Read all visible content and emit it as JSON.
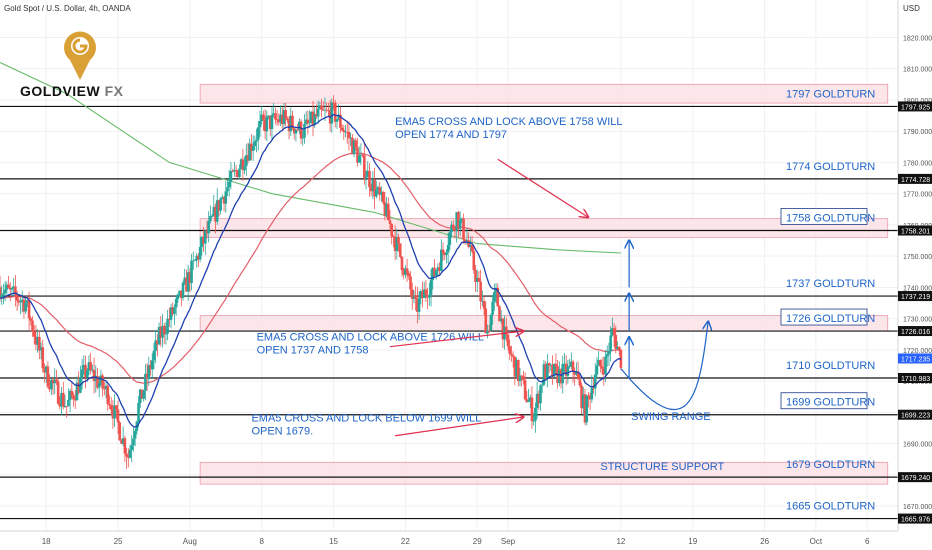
{
  "header": {
    "symbol_title": "Gold Spot / U.S. Dollar, 4h, OANDA",
    "currency": "USD"
  },
  "logo": {
    "brand": "GOLDVIEW",
    "suffix": "FX",
    "icon": "gold-g-pin-icon"
  },
  "colors": {
    "up_candle": "#26a69a",
    "down_candle": "#ef5350",
    "ema_fast": "#1e40af",
    "ema_slow": "#e35d6a",
    "ema_long": "#66bb6a",
    "annotation_blue": "#1e64c8",
    "annotation_red": "#e03050",
    "zone_fill": "#fde2e6",
    "zone_border": "#e88a9a"
  },
  "chart_data": {
    "type": "candlestick",
    "title": "Gold Spot / U.S. Dollar, 4h, OANDA",
    "ylim": [
      1662,
      1832
    ],
    "y_ticks": [
      1670,
      1680,
      1690,
      1700,
      1710,
      1720,
      1730,
      1740,
      1750,
      1760,
      1770,
      1780,
      1790,
      1800,
      1810,
      1820
    ],
    "x_ticks": [
      {
        "label": "18",
        "day": 18
      },
      {
        "label": "25",
        "day": 25
      },
      {
        "label": "Aug",
        "day": 32
      },
      {
        "label": "8",
        "day": 39
      },
      {
        "label": "15",
        "day": 46
      },
      {
        "label": "22",
        "day": 53
      },
      {
        "label": "29",
        "day": 60
      },
      {
        "label": "Sep",
        "day": 63
      },
      {
        "label": "12",
        "day": 74
      },
      {
        "label": "19",
        "day": 81
      },
      {
        "label": "26",
        "day": 88
      },
      {
        "label": "Oct",
        "day": 93
      },
      {
        "label": "6",
        "day": 98
      }
    ],
    "x_range_days": [
      13.5,
      101
    ],
    "price_path": [
      [
        13.5,
        1740
      ],
      [
        16,
        1735
      ],
      [
        18,
        1712
      ],
      [
        20,
        1702
      ],
      [
        22,
        1714
      ],
      [
        24,
        1706
      ],
      [
        26,
        1686
      ],
      [
        27,
        1702
      ],
      [
        29,
        1724
      ],
      [
        31,
        1736
      ],
      [
        33,
        1752
      ],
      [
        35,
        1768
      ],
      [
        37,
        1780
      ],
      [
        39,
        1792
      ],
      [
        41,
        1794
      ],
      [
        43,
        1790
      ],
      [
        44.5,
        1795
      ],
      [
        46,
        1796
      ],
      [
        47.5,
        1788
      ],
      [
        49,
        1778
      ],
      [
        51,
        1765
      ],
      [
        53,
        1745
      ],
      [
        54,
        1733
      ],
      [
        55.5,
        1742
      ],
      [
        56.5,
        1750
      ],
      [
        58,
        1763
      ],
      [
        59,
        1755
      ],
      [
        60,
        1742
      ],
      [
        61,
        1726
      ],
      [
        61.8,
        1738
      ],
      [
        62.8,
        1722
      ],
      [
        64,
        1712
      ],
      [
        65.5,
        1699
      ],
      [
        66.5,
        1713
      ],
      [
        68,
        1712
      ],
      [
        69.5,
        1714
      ],
      [
        70.5,
        1700
      ],
      [
        71.5,
        1713
      ],
      [
        72.5,
        1716
      ],
      [
        73.2,
        1726
      ],
      [
        74,
        1717
      ]
    ],
    "candles_per_day": 6,
    "ema_fast_lag": 5,
    "ema_slow_lag": 20,
    "ema_long_path": [
      [
        13.5,
        1812
      ],
      [
        20,
        1802
      ],
      [
        30,
        1780
      ],
      [
        40,
        1770
      ],
      [
        50,
        1764
      ],
      [
        60,
        1754
      ],
      [
        68,
        1752
      ],
      [
        74,
        1751
      ]
    ],
    "price_levels": [
      {
        "label": "1797.925",
        "value": 1797.925
      },
      {
        "label": "1774.728",
        "value": 1774.728
      },
      {
        "label": "1758.201",
        "value": 1758.201
      },
      {
        "label": "1737.219",
        "value": 1737.219
      },
      {
        "label": "1726.016",
        "value": 1726.016
      },
      {
        "label": "1710.983",
        "value": 1710.983
      },
      {
        "label": "1699.223",
        "value": 1699.223
      },
      {
        "label": "1679.240",
        "value": 1679.24
      },
      {
        "label": "1665.976",
        "value": 1665.976
      }
    ],
    "current_price": {
      "label": "1717.235",
      "value": 1717.235
    },
    "goldturns": [
      {
        "label": "1797 GOLDTURN",
        "value": 1797.925,
        "boxed": false
      },
      {
        "label": "1774 GOLDTURN",
        "value": 1774.728,
        "boxed": false
      },
      {
        "label": "1758 GOLDTURN",
        "value": 1758.201,
        "boxed": true
      },
      {
        "label": "1737 GOLDTURN",
        "value": 1737.219,
        "boxed": false
      },
      {
        "label": "1726 GOLDTURN",
        "value": 1726.016,
        "boxed": true
      },
      {
        "label": "1710 GOLDTURN",
        "value": 1710.983,
        "boxed": false
      },
      {
        "label": "1699 GOLDTURN",
        "value": 1699.223,
        "boxed": true
      },
      {
        "label": "1679 GOLDTURN",
        "value": 1679.24,
        "boxed": false
      },
      {
        "label": "1665 GOLDTURN",
        "value": 1665.976,
        "boxed": false
      }
    ],
    "zones": [
      {
        "name": "zone-1797",
        "from_day": 33,
        "to_day": 100,
        "low": 1799,
        "high": 1805
      },
      {
        "name": "zone-1758",
        "from_day": 33,
        "to_day": 100,
        "low": 1756,
        "high": 1762
      },
      {
        "name": "zone-1726",
        "from_day": 33,
        "to_day": 100,
        "low": 1726,
        "high": 1731
      },
      {
        "name": "zone-1679",
        "from_day": 33,
        "to_day": 100,
        "low": 1677,
        "high": 1684
      }
    ],
    "annotations": [
      {
        "lines": [
          "EMA5 CROSS AND LOCK ABOVE 1758 WILL",
          "OPEN 1774  AND 1797"
        ],
        "day": 52,
        "value": 1792,
        "color": "blue"
      },
      {
        "lines": [
          "EMA5 CROSS AND LOCK ABOVE 1726 WILL",
          "OPEN 1737 AND 1758"
        ],
        "day": 38.5,
        "value": 1723,
        "color": "blue"
      },
      {
        "lines": [
          "EMA5 CROSS AND LOCK BELOW 1699 WILL",
          "OPEN 1679."
        ],
        "day": 38,
        "value": 1697,
        "color": "blue"
      },
      {
        "lines": [
          "SWING RANGE"
        ],
        "day": 75,
        "value": 1697.5,
        "color": "blue"
      },
      {
        "lines": [
          "STRUCTURE SUPPORT"
        ],
        "day": 72,
        "value": 1681.5,
        "color": "blue"
      }
    ]
  }
}
